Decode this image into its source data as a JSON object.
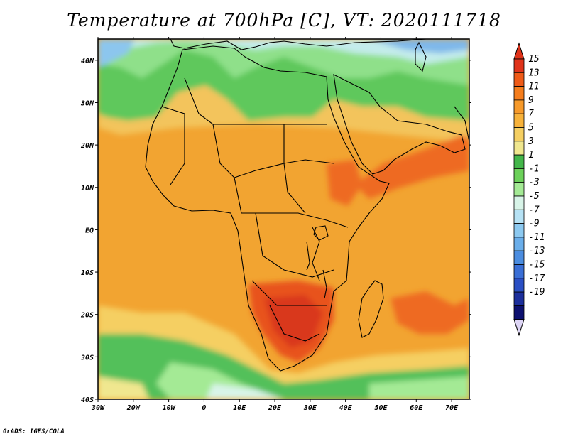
{
  "title": "Temperature at 700hPa [C], VT: 2020111718",
  "credit": "GrADS: IGES/COLA",
  "map": {
    "projection": "lat-lon",
    "region": "Africa",
    "lon_range": [
      -30,
      75
    ],
    "lat_range": [
      -40,
      45
    ],
    "lon_ticks": [
      "30W",
      "20W",
      "10W",
      "0",
      "10E",
      "20E",
      "30E",
      "40E",
      "50E",
      "60E",
      "70E"
    ],
    "lat_ticks": [
      "40N",
      "30N",
      "20N",
      "10N",
      "EQ",
      "10S",
      "20S",
      "30S",
      "40S"
    ],
    "background_color": "#f2a431"
  },
  "colorbar": {
    "labels": [
      "15",
      "13",
      "11",
      "9",
      "7",
      "5",
      "3",
      "1",
      "-1",
      "-3",
      "-5",
      "-7",
      "-9",
      "-11",
      "-13",
      "-15",
      "-17",
      "-19"
    ],
    "colors": [
      "#e0331a",
      "#ee5a17",
      "#f57d1c",
      "#f79a2a",
      "#f7b23a",
      "#f5cf62",
      "#f0e78f",
      "#43b64a",
      "#6cd15a",
      "#a4ea95",
      "#d8f4e8",
      "#b6e2f5",
      "#8cc9f0",
      "#6aaeea",
      "#4b8de0",
      "#3a6fd6",
      "#2a4fc4",
      "#1c2f9c",
      "#0d1170"
    ],
    "top_color": "#e0331a",
    "bottom_color": "#ddd5f5"
  }
}
